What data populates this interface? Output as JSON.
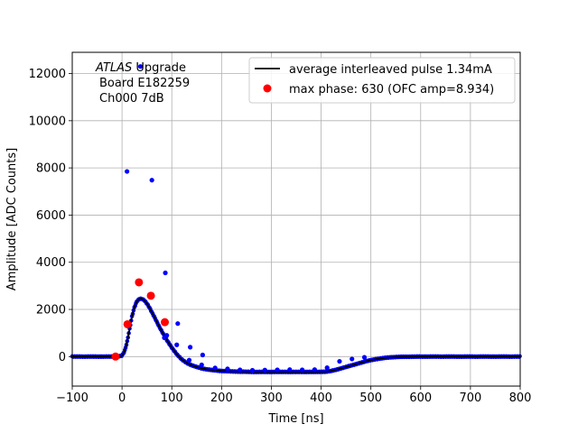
{
  "chart_data": {
    "type": "scatter",
    "xlabel": "Time [ns]",
    "ylabel": "Amplitude [ADC Counts]",
    "xlim": [
      -100,
      800
    ],
    "ylim": [
      -1250,
      12900
    ],
    "xticks": [
      -100,
      0,
      100,
      200,
      300,
      400,
      500,
      600,
      700,
      800
    ],
    "yticks": [
      0,
      2000,
      4000,
      6000,
      8000,
      10000,
      12000
    ],
    "grid": true,
    "legend_position": "top-right",
    "annotation": {
      "line1_italic": "ATLAS",
      "line1_rest": " Upgrade",
      "line2": "Board E182259",
      "line3": "Ch000 7dB"
    },
    "series": [
      {
        "name": "average interleaved pulse 1.34mA",
        "kind": "line",
        "color": "#000000",
        "x": [
          -100,
          -20,
          -10,
          0,
          5,
          10,
          15,
          20,
          25,
          30,
          35,
          40,
          45,
          50,
          55,
          60,
          65,
          70,
          75,
          80,
          90,
          100,
          110,
          120,
          130,
          140,
          150,
          160,
          170,
          180,
          190,
          200,
          220,
          240,
          260,
          280,
          300,
          330,
          360,
          390,
          410,
          420,
          430,
          440,
          450,
          460,
          470,
          480,
          490,
          500,
          510,
          520,
          530,
          540,
          560,
          600,
          650,
          700,
          750,
          800
        ],
        "y": [
          0,
          0,
          0,
          40,
          220,
          600,
          1150,
          1700,
          2100,
          2350,
          2450,
          2450,
          2380,
          2250,
          2080,
          1880,
          1680,
          1470,
          1260,
          1070,
          700,
          380,
          100,
          -120,
          -270,
          -370,
          -440,
          -500,
          -540,
          -570,
          -590,
          -610,
          -630,
          -640,
          -650,
          -650,
          -650,
          -650,
          -650,
          -650,
          -640,
          -610,
          -560,
          -500,
          -440,
          -380,
          -320,
          -260,
          -200,
          -150,
          -110,
          -80,
          -50,
          -30,
          -10,
          0,
          0,
          0,
          0,
          0
        ]
      },
      {
        "name": "",
        "kind": "scatter-outliers",
        "color": "#0000ff",
        "x": [
          10,
          37,
          60,
          87,
          112,
          137,
          162,
          85,
          90,
          110,
          135,
          160,
          187,
          212,
          237,
          262,
          287,
          312,
          337,
          362,
          387,
          412,
          437,
          462,
          487
        ],
        "y": [
          7850,
          12300,
          7480,
          3550,
          1400,
          400,
          70,
          800,
          900,
          500,
          -150,
          -350,
          -480,
          -520,
          -560,
          -580,
          -570,
          -560,
          -550,
          -560,
          -550,
          -470,
          -200,
          -100,
          -30
        ]
      },
      {
        "name": "max phase: 630 (OFC amp=8.934)",
        "kind": "scatter",
        "color": "#ff0000",
        "x": [
          -13,
          11,
          34,
          58,
          86
        ],
        "y": [
          0,
          1370,
          3150,
          2580,
          1460
        ]
      }
    ]
  }
}
